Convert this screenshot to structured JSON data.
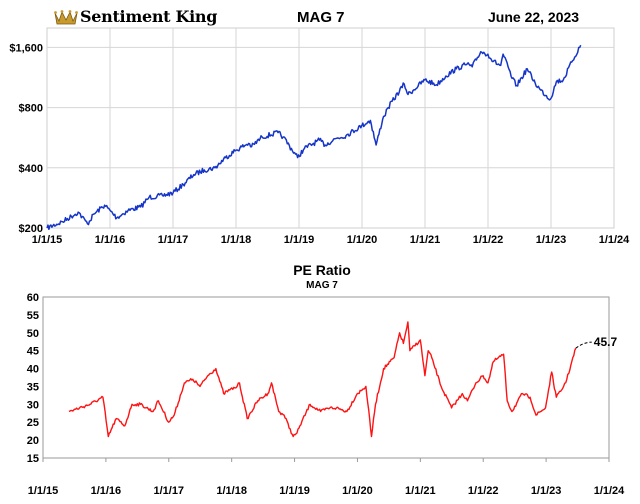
{
  "header": {
    "brand": "Sentiment King",
    "title": "MAG 7",
    "date": "June 22, 2023"
  },
  "chart_data": [
    {
      "type": "line",
      "title": "MAG 7",
      "y_scale": "log",
      "ylim": [
        200,
        2000
      ],
      "y_ticks": [
        "$200",
        "$400",
        "$800",
        "$1,600"
      ],
      "y_tick_values": [
        200,
        400,
        800,
        1600
      ],
      "x_ticks": [
        "1/1/15",
        "1/1/16",
        "1/1/17",
        "1/1/18",
        "1/1/19",
        "1/1/20",
        "1/1/21",
        "1/1/22",
        "1/1/23",
        "1/1/24"
      ],
      "xlim": [
        "2015-01-01",
        "2024-01-01"
      ],
      "grid": true,
      "color": "#1535c8",
      "series": [
        {
          "x": [
            "2015-01-01",
            "2015-04-01",
            "2015-07-01",
            "2015-08-24",
            "2015-10-01",
            "2015-12-01",
            "2016-02-10",
            "2016-04-15",
            "2016-06-27",
            "2016-08-15",
            "2016-11-01",
            "2017-01-01",
            "2017-03-01",
            "2017-05-01",
            "2017-07-01",
            "2017-09-01",
            "2017-11-01",
            "2018-01-01",
            "2018-03-15",
            "2018-04-01",
            "2018-06-01",
            "2018-09-01",
            "2018-10-01",
            "2018-12-24",
            "2019-02-01",
            "2019-04-30",
            "2019-06-01",
            "2019-08-01",
            "2019-10-01",
            "2019-12-31",
            "2020-02-19",
            "2020-03-23",
            "2020-04-30",
            "2020-06-01",
            "2020-09-02",
            "2020-09-24",
            "2020-12-31",
            "2021-03-08",
            "2021-05-01",
            "2021-07-01",
            "2021-09-01",
            "2021-10-01",
            "2021-11-19",
            "2021-12-31",
            "2022-01-31",
            "2022-03-15",
            "2022-03-29",
            "2022-05-20",
            "2022-06-16",
            "2022-08-16",
            "2022-10-01",
            "2022-11-01",
            "2022-12-28",
            "2023-02-01",
            "2023-03-13",
            "2023-05-01",
            "2023-06-22"
          ],
          "y": [
            200,
            215,
            240,
            210,
            235,
            260,
            225,
            245,
            255,
            285,
            290,
            300,
            330,
            370,
            390,
            400,
            450,
            490,
            530,
            510,
            570,
            600,
            570,
            450,
            500,
            550,
            520,
            560,
            580,
            650,
            690,
            520,
            700,
            800,
            1050,
            930,
            1100,
            1040,
            1150,
            1250,
            1320,
            1280,
            1520,
            1480,
            1360,
            1300,
            1480,
            1120,
            1030,
            1250,
            1060,
            980,
            880,
            1080,
            1100,
            1350,
            1640
          ]
        }
      ]
    },
    {
      "type": "line",
      "title": "PE Ratio",
      "subtitle": "MAG 7",
      "ylim": [
        15,
        60
      ],
      "y_ticks": [
        15,
        20,
        25,
        30,
        35,
        40,
        45,
        50,
        55,
        60
      ],
      "x_ticks": [
        "1/1/15",
        "1/1/16",
        "1/1/17",
        "1/1/18",
        "1/1/19",
        "1/1/20",
        "1/1/21",
        "1/1/22",
        "1/1/23",
        "1/1/24"
      ],
      "xlim": [
        "2015-01-01",
        "2024-01-01"
      ],
      "grid": false,
      "color": "#ff1212",
      "last_value_label": "45.7",
      "series": [
        {
          "x": [
            "2015-06-01",
            "2015-08-01",
            "2015-10-01",
            "2015-12-15",
            "2016-01-15",
            "2016-03-01",
            "2016-04-20",
            "2016-06-01",
            "2016-07-20",
            "2016-10-01",
            "2016-11-01",
            "2016-12-31",
            "2017-02-01",
            "2017-04-01",
            "2017-05-20",
            "2017-07-01",
            "2017-08-15",
            "2017-10-01",
            "2017-11-15",
            "2017-12-20",
            "2018-02-01",
            "2018-02-15",
            "2018-04-01",
            "2018-06-01",
            "2018-07-30",
            "2018-08-20",
            "2018-10-01",
            "2018-11-01",
            "2018-12-24",
            "2019-01-15",
            "2019-02-01",
            "2019-04-01",
            "2019-06-01",
            "2019-07-25",
            "2019-09-01",
            "2019-11-01",
            "2019-12-31",
            "2020-01-28",
            "2020-02-19",
            "2020-03-23",
            "2020-04-15",
            "2020-06-01",
            "2020-08-01",
            "2020-09-02",
            "2020-09-24",
            "2020-10-20",
            "2020-11-01",
            "2020-12-31",
            "2021-01-27",
            "2021-02-15",
            "2021-03-08",
            "2021-05-01",
            "2021-07-01",
            "2021-09-01",
            "2021-10-01",
            "2021-11-19",
            "2021-12-31",
            "2022-01-28",
            "2022-03-01",
            "2022-04-29",
            "2022-05-20",
            "2022-06-16",
            "2022-08-16",
            "2022-09-30",
            "2022-11-03",
            "2022-12-28",
            "2023-02-02",
            "2023-03-01",
            "2023-04-01",
            "2023-05-01",
            "2023-06-22"
          ],
          "y": [
            28,
            29,
            30,
            32,
            21,
            26,
            24,
            30,
            30,
            28,
            31,
            25,
            27,
            36,
            37,
            35,
            38,
            40,
            33,
            34,
            35,
            36,
            26,
            31,
            33,
            36,
            28,
            27,
            21,
            22,
            24,
            30,
            28,
            29,
            29,
            28,
            33,
            34,
            35,
            21,
            30,
            40,
            43,
            50,
            47,
            53,
            45,
            48,
            38,
            45,
            43,
            35,
            29,
            33,
            31,
            36,
            38,
            36,
            42,
            44,
            31,
            28,
            33,
            32,
            27,
            29,
            39,
            32,
            34,
            37,
            45.7
          ]
        }
      ]
    }
  ]
}
